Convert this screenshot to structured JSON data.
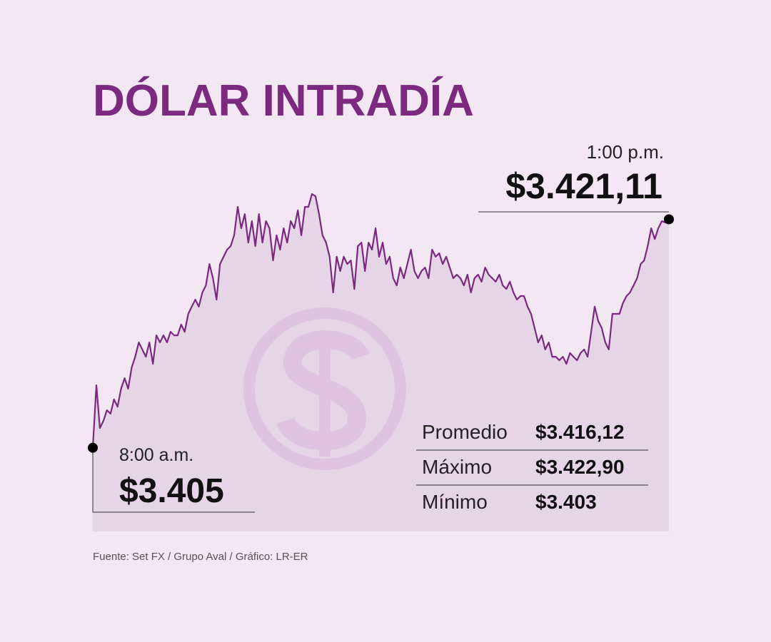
{
  "chart_data": {
    "type": "line",
    "title": "DÓLAR INTRADÍA",
    "source": "Fuente: Set FX / Grupo Aval / Gráfico: LR-ER",
    "color": "#7a2a7e",
    "area_color": "#e6d4e7",
    "ylim": [
      3399.1,
      3424
    ],
    "categories": [
      "8:00 a.m.",
      null,
      null,
      null,
      null,
      null,
      null,
      null,
      null,
      null,
      null,
      null,
      null,
      null,
      null,
      null,
      null,
      null,
      null,
      null,
      null,
      null,
      null,
      null,
      null,
      null,
      null,
      null,
      null,
      null,
      null,
      null,
      null,
      null,
      null,
      null,
      null,
      null,
      null,
      null,
      null,
      null,
      null,
      null,
      null,
      null,
      null,
      null,
      null,
      null,
      null,
      null,
      null,
      null,
      null,
      null,
      null,
      null,
      null,
      null,
      null,
      null,
      null,
      null,
      null,
      null,
      null,
      null,
      null,
      null,
      null,
      null,
      null,
      null,
      null,
      null,
      null,
      null,
      null,
      null,
      null,
      null,
      null,
      null,
      null,
      null,
      null,
      null,
      null,
      null,
      null,
      null,
      null,
      null,
      null,
      null,
      null,
      null,
      null,
      null,
      null,
      null,
      null,
      null,
      null,
      null,
      null,
      null,
      null,
      null,
      null,
      null,
      null,
      null,
      null,
      null,
      null,
      null,
      null,
      null,
      null,
      null,
      null,
      null,
      null,
      null,
      null,
      null,
      null,
      null,
      null,
      null,
      null,
      null,
      null,
      null,
      null,
      null,
      null,
      null,
      null,
      null,
      null,
      null,
      null,
      null,
      null,
      null,
      null,
      null,
      null,
      null,
      null,
      null,
      null,
      null,
      null,
      null,
      null,
      null,
      null,
      null,
      null,
      "1:00 p.m."
    ],
    "values": [
      3405,
      3409.41,
      3406.39,
      3406.9,
      3407.65,
      3407.4,
      3408.41,
      3407.9,
      3409.16,
      3409.91,
      3409.16,
      3410.67,
      3411.42,
      3412.43,
      3411.93,
      3411.42,
      3412.43,
      3410.92,
      3412.93,
      3412.43,
      3412.93,
      3412.43,
      3413.18,
      3412.93,
      3412.93,
      3413.69,
      3413.18,
      3414.44,
      3414.95,
      3415.45,
      3414.95,
      3415.95,
      3416.45,
      3417.96,
      3416.96,
      3415.45,
      3417.96,
      3418.47,
      3418.97,
      3419.22,
      3419.98,
      3421.99,
      3420.48,
      3421.48,
      3419.47,
      3420.98,
      3419.22,
      3421.48,
      3419.47,
      3420.98,
      3420.48,
      3418.21,
      3419.98,
      3418.97,
      3420.48,
      3419.47,
      3420.98,
      3420.48,
      3421.74,
      3419.98,
      3421.99,
      3421.99,
      3422.9,
      3422.74,
      3421.48,
      3419.98,
      3419.47,
      3418.47,
      3415.95,
      3418.47,
      3417.46,
      3418.47,
      3417.96,
      3418.21,
      3416.2,
      3419.22,
      3419.47,
      3417.46,
      3419.47,
      3418.97,
      3420.48,
      3418.47,
      3419.47,
      3417.96,
      3418.47,
      3416.96,
      3416.45,
      3417.71,
      3416.96,
      3417.96,
      3418.97,
      3417.46,
      3416.96,
      3417.46,
      3417.71,
      3416.96,
      3418.97,
      3418.47,
      3418.72,
      3417.96,
      3418.47,
      3417.71,
      3416.96,
      3417.21,
      3416.96,
      3416.45,
      3417.21,
      3415.95,
      3416.96,
      3417.21,
      3416.71,
      3417.71,
      3417.21,
      3416.96,
      3416.71,
      3417.21,
      3416.45,
      3416.2,
      3416.71,
      3415.95,
      3415.45,
      3415.7,
      3415.7,
      3414.95,
      3414.44,
      3413.44,
      3412.43,
      3412.93,
      3411.93,
      3412.43,
      3411.42,
      3411.42,
      3411.17,
      3411.42,
      3410.92,
      3411.68,
      3411.42,
      3411.17,
      3411.68,
      3411.93,
      3411.42,
      3413.18,
      3414.95,
      3413.94,
      3413.44,
      3412.43,
      3411.93,
      3414.44,
      3414.44,
      3414.44,
      3415.2,
      3415.7,
      3415.95,
      3416.45,
      3416.96,
      3417.96,
      3418.21,
      3419.22,
      3420.48,
      3419.72,
      3420.48,
      3420.98,
      3420.88,
      3421.11
    ],
    "value_labels": [
      "$3.405",
      null,
      null,
      null,
      null,
      null,
      null,
      null,
      null,
      null,
      null,
      null,
      null,
      null,
      null,
      null,
      null,
      null,
      null,
      null,
      null,
      null,
      null,
      null,
      null,
      null,
      null,
      null,
      null,
      null,
      null,
      null,
      null,
      null,
      null,
      null,
      null,
      null,
      null,
      null,
      null,
      null,
      null,
      null,
      null,
      null,
      null,
      null,
      null,
      null,
      null,
      null,
      null,
      null,
      null,
      null,
      null,
      null,
      null,
      null,
      null,
      null,
      null,
      null,
      null,
      null,
      null,
      null,
      null,
      null,
      null,
      null,
      null,
      null,
      null,
      null,
      null,
      null,
      null,
      null,
      null,
      null,
      null,
      null,
      null,
      null,
      null,
      null,
      null,
      null,
      null,
      null,
      null,
      null,
      null,
      null,
      null,
      null,
      null,
      null,
      null,
      null,
      null,
      null,
      null,
      null,
      null,
      null,
      null,
      null,
      null,
      null,
      null,
      null,
      null,
      null,
      null,
      null,
      null,
      null,
      null,
      null,
      null,
      null,
      null,
      null,
      null,
      null,
      null,
      null,
      null,
      null,
      null,
      null,
      null,
      null,
      null,
      null,
      null,
      null,
      null,
      null,
      null,
      null,
      null,
      null,
      null,
      null,
      null,
      null,
      null,
      null,
      null,
      null,
      null,
      null,
      null,
      null,
      null,
      null,
      null,
      null,
      null,
      "$3.421,11"
    ],
    "stats": [
      {
        "label": "Promedio",
        "value": 3416.12,
        "value_label": "$3.416,12"
      },
      {
        "label": "Máximo",
        "value": 3422.9,
        "value_label": "$3.422,90"
      },
      {
        "label": "Mínimo",
        "value": 3403,
        "value_label": "$3.403"
      }
    ]
  }
}
